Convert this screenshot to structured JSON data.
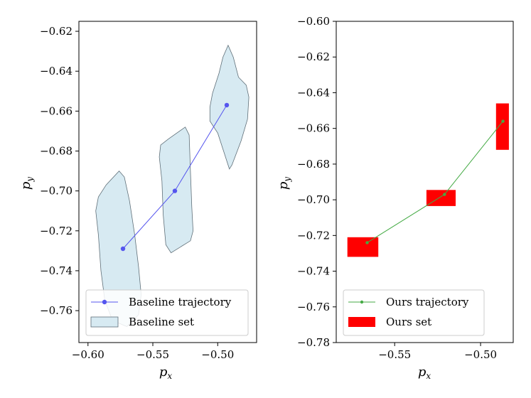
{
  "chart_data": [
    {
      "type": "line",
      "panel": "left",
      "xlabel_base": "p",
      "xlabel_sub": "x",
      "ylabel_base": "p",
      "ylabel_sub": "y",
      "xlim": [
        -0.607,
        -0.47
      ],
      "ylim": [
        -0.776,
        -0.615
      ],
      "xticks": [
        -0.6,
        -0.55,
        -0.5
      ],
      "xtick_labels": [
        "−0.60",
        "−0.55",
        "−0.50"
      ],
      "yticks": [
        -0.62,
        -0.64,
        -0.66,
        -0.68,
        -0.7,
        -0.72,
        -0.74,
        -0.76
      ],
      "ytick_labels": [
        "−0.62",
        "−0.64",
        "−0.66",
        "−0.68",
        "−0.70",
        "−0.72",
        "−0.74",
        "−0.76"
      ],
      "trajectory": {
        "name": "Baseline trajectory",
        "color": "#5555ee",
        "x": [
          -0.573,
          -0.533,
          -0.493
        ],
        "y": [
          -0.729,
          -0.7,
          -0.657
        ]
      },
      "sets": {
        "name": "Baseline set",
        "fill": "#d7eaf2",
        "stroke": "#5f6f78",
        "polygons": [
          [
            [
              -0.576,
              -0.69
            ],
            [
              -0.572,
              -0.693
            ],
            [
              -0.568,
              -0.705
            ],
            [
              -0.564,
              -0.722
            ],
            [
              -0.561,
              -0.738
            ],
            [
              -0.559,
              -0.752
            ],
            [
              -0.561,
              -0.762
            ],
            [
              -0.57,
              -0.768
            ],
            [
              -0.581,
              -0.765
            ],
            [
              -0.587,
              -0.755
            ],
            [
              -0.59,
              -0.74
            ],
            [
              -0.592,
              -0.722
            ],
            [
              -0.594,
              -0.71
            ],
            [
              -0.592,
              -0.703
            ],
            [
              -0.586,
              -0.697
            ]
          ],
          [
            [
              -0.525,
              -0.668
            ],
            [
              -0.522,
              -0.672
            ],
            [
              -0.521,
              -0.69
            ],
            [
              -0.52,
              -0.708
            ],
            [
              -0.519,
              -0.72
            ],
            [
              -0.521,
              -0.725
            ],
            [
              -0.536,
              -0.731
            ],
            [
              -0.54,
              -0.727
            ],
            [
              -0.542,
              -0.712
            ],
            [
              -0.543,
              -0.695
            ],
            [
              -0.545,
              -0.683
            ],
            [
              -0.544,
              -0.677
            ],
            [
              -0.538,
              -0.674
            ]
          ],
          [
            [
              -0.492,
              -0.627
            ],
            [
              -0.488,
              -0.633
            ],
            [
              -0.484,
              -0.643
            ],
            [
              -0.478,
              -0.647
            ],
            [
              -0.476,
              -0.653
            ],
            [
              -0.477,
              -0.664
            ],
            [
              -0.482,
              -0.675
            ],
            [
              -0.489,
              -0.687
            ],
            [
              -0.491,
              -0.689
            ],
            [
              -0.495,
              -0.681
            ],
            [
              -0.5,
              -0.671
            ],
            [
              -0.506,
              -0.665
            ],
            [
              -0.506,
              -0.658
            ],
            [
              -0.504,
              -0.651
            ],
            [
              -0.499,
              -0.641
            ],
            [
              -0.496,
              -0.633
            ]
          ]
        ]
      },
      "legend": {
        "location": "lower-right",
        "entries": [
          "Baseline trajectory",
          "Baseline set"
        ]
      }
    },
    {
      "type": "line",
      "panel": "right",
      "xlabel_base": "p",
      "xlabel_sub": "x",
      "ylabel_base": "p",
      "ylabel_sub": "y",
      "xlim": [
        -0.584,
        -0.481
      ],
      "ylim": [
        -0.78,
        -0.6
      ],
      "xticks": [
        -0.55,
        -0.5
      ],
      "xtick_labels": [
        "−0.55",
        "−0.50"
      ],
      "yticks": [
        -0.6,
        -0.62,
        -0.64,
        -0.66,
        -0.68,
        -0.7,
        -0.72,
        -0.74,
        -0.76,
        -0.78
      ],
      "ytick_labels": [
        "−0.60",
        "−0.62",
        "−0.64",
        "−0.66",
        "−0.68",
        "−0.70",
        "−0.72",
        "−0.74",
        "−0.76",
        "−0.78"
      ],
      "trajectory": {
        "name": "Ours trajectory",
        "color": "#44aa44",
        "x": [
          -0.566,
          -0.521,
          -0.487
        ],
        "y": [
          -0.724,
          -0.697,
          -0.656
        ]
      },
      "sets": {
        "name": "Ours set",
        "fill": "#ff0000",
        "boxes": [
          {
            "x0": -0.5775,
            "x1": -0.5595,
            "y0": -0.732,
            "y1": -0.721
          },
          {
            "x0": -0.5315,
            "x1": -0.5145,
            "y0": -0.7035,
            "y1": -0.6945
          },
          {
            "x0": -0.491,
            "x1": -0.4835,
            "y0": -0.672,
            "y1": -0.646
          }
        ]
      },
      "legend": {
        "location": "lower-left",
        "entries": [
          "Ours trajectory",
          "Ours set"
        ]
      }
    }
  ]
}
